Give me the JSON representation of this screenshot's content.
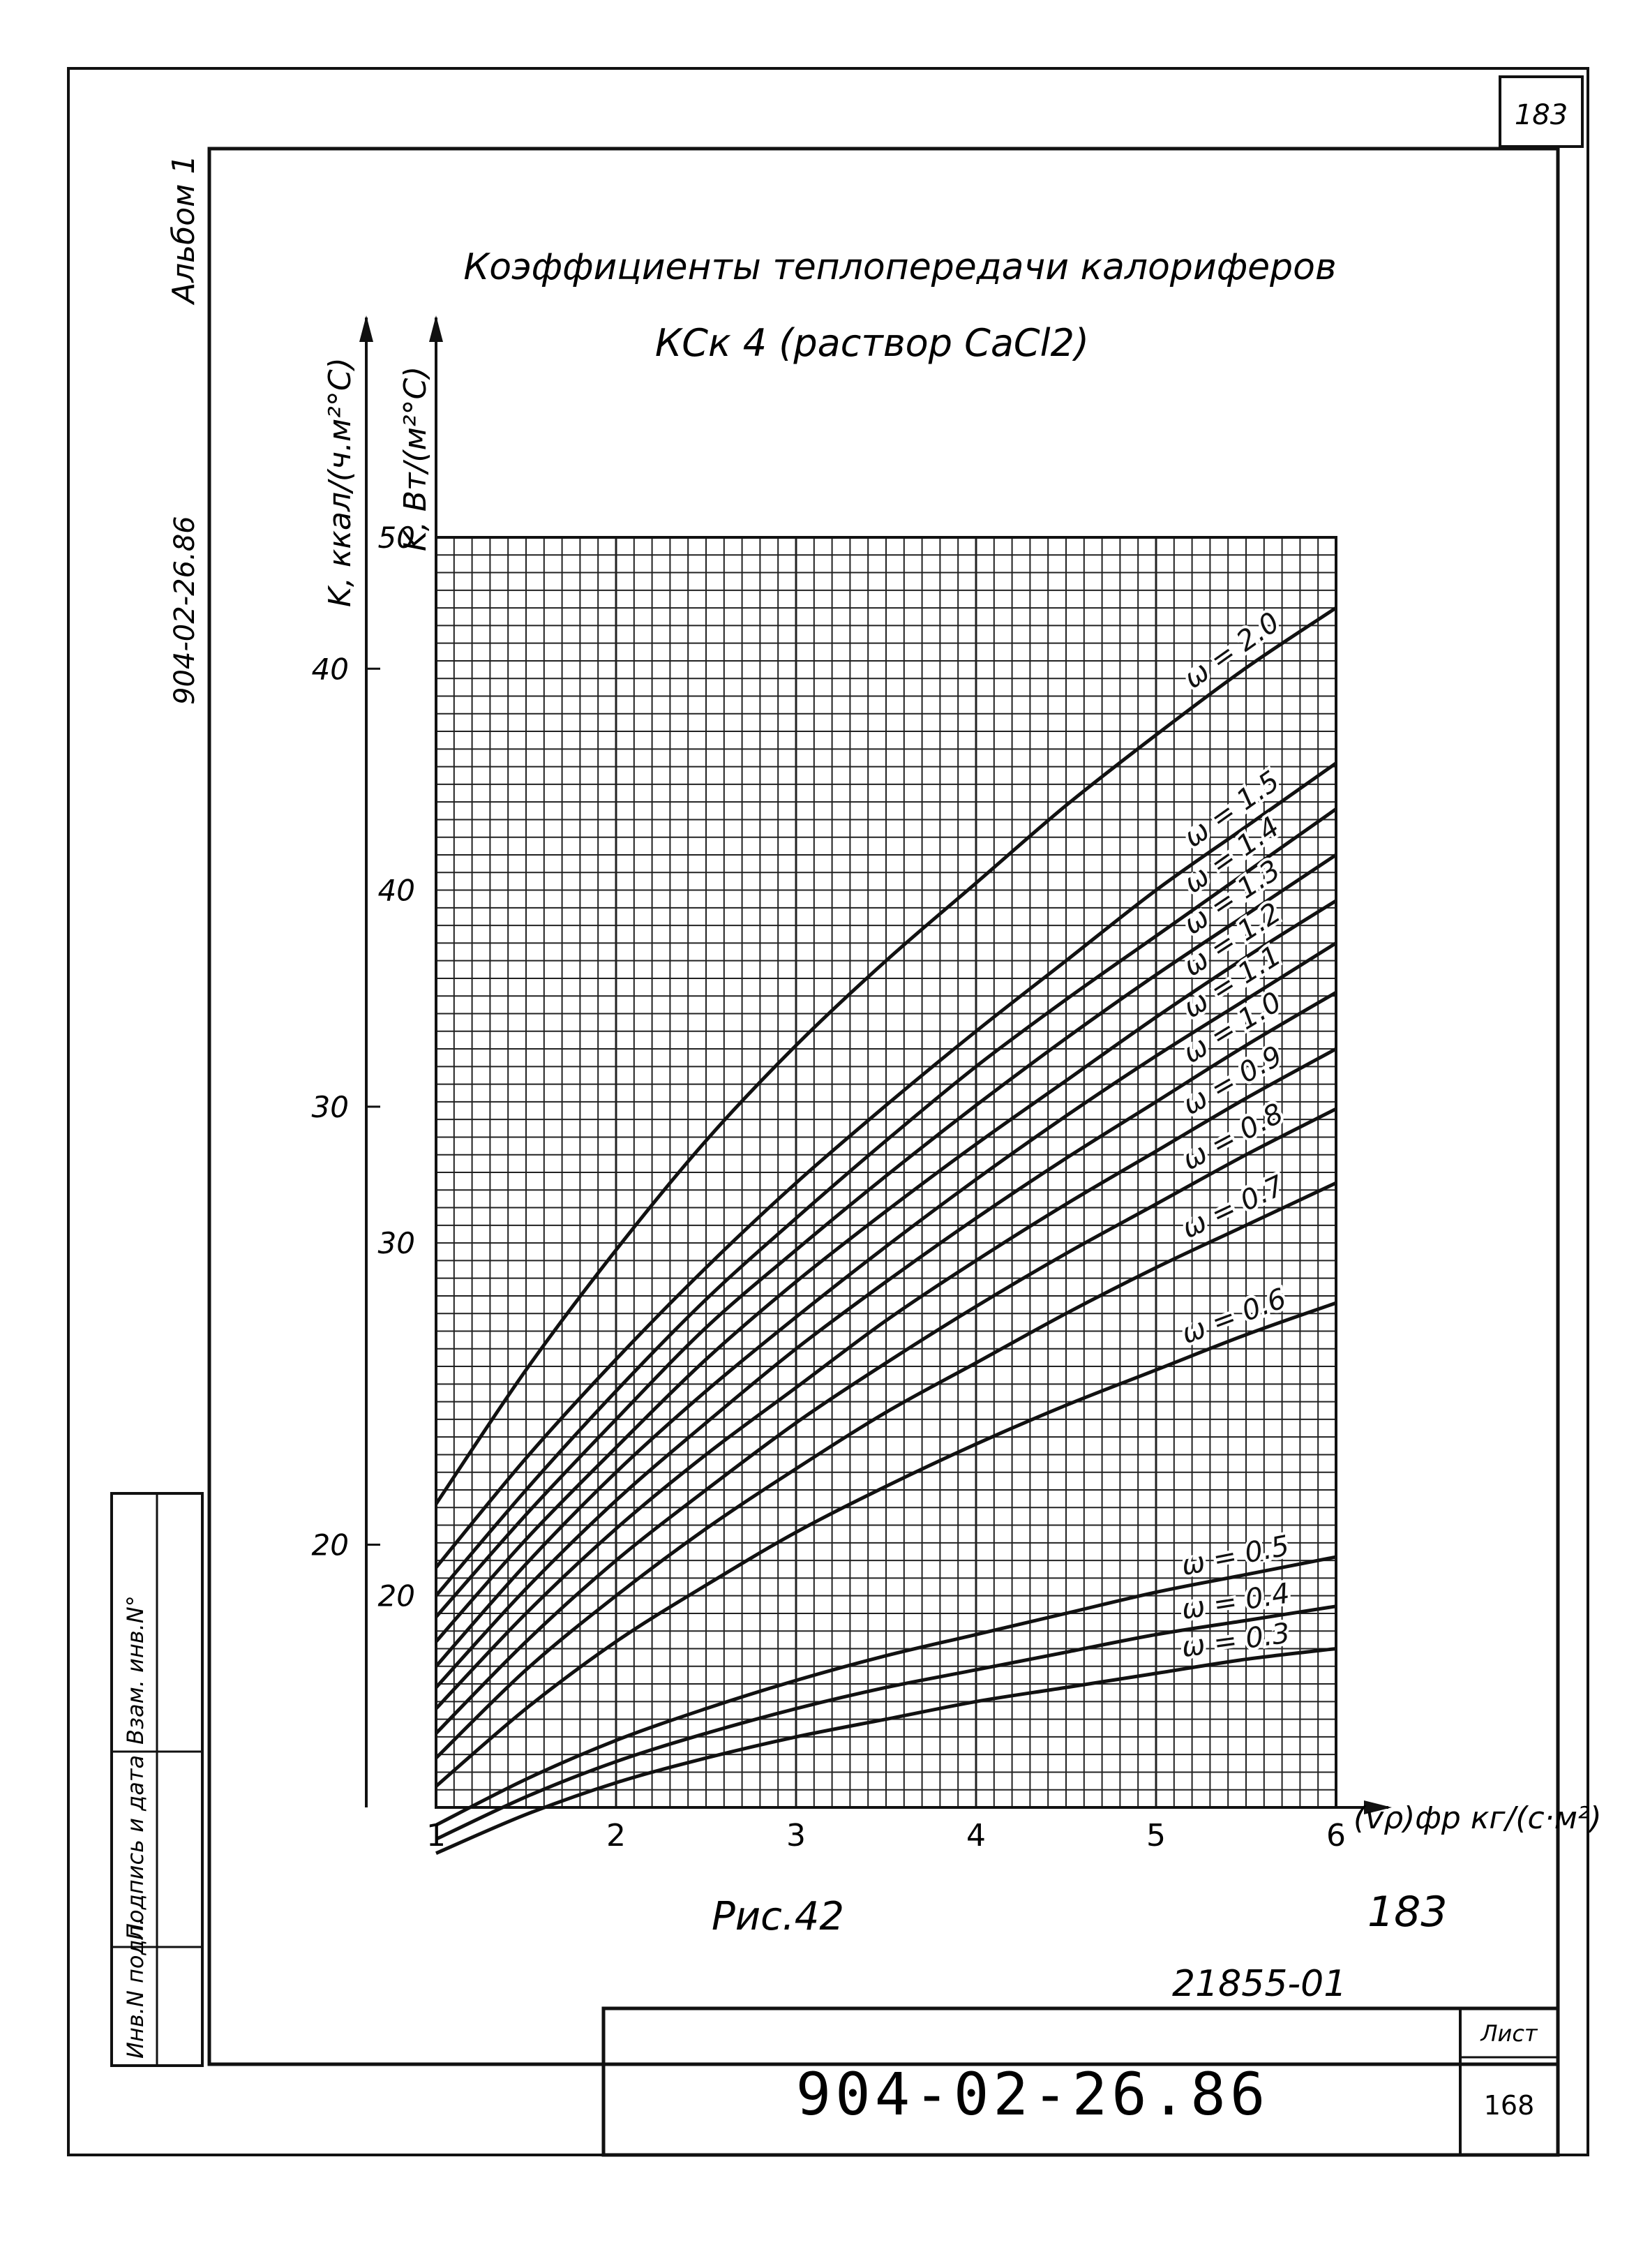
{
  "sheet": {
    "page_number": "183",
    "album": "Альбом 1",
    "doc_code_side": "904-02-26.86",
    "figure_caption": "Рис.42",
    "handwritten_number": "183",
    "handwritten_code": "21855-01",
    "stamp_code": "904-02-26.86",
    "stamp_sheet_label": "Лист",
    "stamp_sheet_number": "168",
    "side_stamp": [
      "Инв.N подл.",
      "Подпись и дата",
      "Взам. инв.N°"
    ]
  },
  "chart_data": {
    "type": "line",
    "title": "Коэффициенты теплопередачи калориферов",
    "subtitle": "КСк 4 (раствор CaCl2)",
    "ylabel_kcal": "K, ккал/(ч.м²°С)",
    "ylabel_w": "K, Вт/(м²°С)",
    "xlabel": "(vρ)фр кг/(с·м²)",
    "xlim": [
      1,
      6
    ],
    "ylim_w": [
      14,
      50
    ],
    "ylim_kcal": [
      14,
      43
    ],
    "x_ticks": [
      "1",
      "2",
      "3",
      "4",
      "5",
      "6"
    ],
    "y_ticks_w": [
      "20",
      "30",
      "40",
      "50"
    ],
    "y_ticks_kcal": [
      "20",
      "30",
      "40"
    ],
    "grid": true,
    "x": [
      1,
      1.5,
      2,
      2.5,
      3,
      3.5,
      4,
      4.5,
      5,
      5.5,
      6
    ],
    "series": [
      {
        "name": "ω = 2.0",
        "values": [
          22.6,
          26.4,
          29.8,
          32.9,
          35.6,
          38.0,
          40.2,
          42.4,
          44.4,
          46.3,
          48.0
        ]
      },
      {
        "name": "ω = 1.5",
        "values": [
          20.8,
          23.9,
          26.7,
          29.3,
          31.7,
          33.9,
          36.0,
          38.0,
          40.0,
          41.8,
          43.6
        ]
      },
      {
        "name": "ω = 1.4",
        "values": [
          20.0,
          23.0,
          25.8,
          28.4,
          30.7,
          32.9,
          35.0,
          36.9,
          38.7,
          40.5,
          42.3
        ]
      },
      {
        "name": "ω = 1.3",
        "values": [
          19.4,
          22.3,
          25.0,
          27.6,
          29.8,
          31.9,
          33.9,
          35.8,
          37.6,
          39.3,
          41.0
        ]
      },
      {
        "name": "ω = 1.2",
        "values": [
          18.7,
          21.6,
          24.2,
          26.7,
          28.9,
          30.9,
          32.8,
          34.6,
          36.4,
          38.1,
          39.7
        ]
      },
      {
        "name": "ω = 1.1",
        "values": [
          18.0,
          20.9,
          23.5,
          25.8,
          27.9,
          29.9,
          31.8,
          33.6,
          35.3,
          36.9,
          38.5
        ]
      },
      {
        "name": "ω = 1.0",
        "values": [
          17.4,
          20.2,
          22.7,
          24.9,
          27.0,
          28.9,
          30.7,
          32.4,
          34.0,
          35.6,
          37.1
        ]
      },
      {
        "name": "ω = 0.9",
        "values": [
          16.8,
          19.5,
          21.9,
          24.0,
          25.9,
          27.8,
          29.5,
          31.1,
          32.6,
          34.1,
          35.5
        ]
      },
      {
        "name": "ω = 0.8",
        "values": [
          16.1,
          18.7,
          21.0,
          23.0,
          24.9,
          26.6,
          28.2,
          29.7,
          31.1,
          32.5,
          33.8
        ]
      },
      {
        "name": "ω = 0.7",
        "values": [
          15.4,
          17.9,
          20.0,
          21.9,
          23.6,
          25.2,
          26.6,
          28.0,
          29.3,
          30.5,
          31.7
        ]
      },
      {
        "name": "ω = 0.6",
        "values": [
          14.6,
          16.8,
          18.7,
          20.3,
          21.8,
          23.1,
          24.3,
          25.4,
          26.4,
          27.4,
          28.3
        ]
      },
      {
        "name": "ω = 0.5",
        "values": [
          13.5,
          14.8,
          15.9,
          16.8,
          17.6,
          18.3,
          18.9,
          19.5,
          20.1,
          20.6,
          21.1
        ]
      },
      {
        "name": "ω = 0.4",
        "values": [
          13.1,
          14.3,
          15.3,
          16.1,
          16.8,
          17.4,
          17.9,
          18.4,
          18.9,
          19.3,
          19.7
        ]
      },
      {
        "name": "ω = 0.3",
        "values": [
          12.7,
          13.8,
          14.7,
          15.4,
          16.0,
          16.5,
          17.0,
          17.4,
          17.8,
          18.2,
          18.5
        ]
      }
    ]
  }
}
